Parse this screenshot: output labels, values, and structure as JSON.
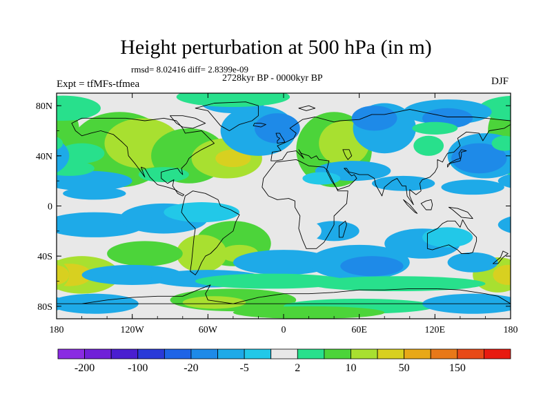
{
  "chart_data": {
    "type": "filled-contour-map",
    "title": "Height perturbation at 500 hPa (in m)",
    "stats": {
      "rmsd_label": "rmsd= 8.02416",
      "diff_label": "diff= 2.8399e-09",
      "line": "rmsd= 8.02416 diff= 2.8399e-09"
    },
    "period": "2728kyr BP - 0000kyr BP",
    "experiment": "Expt = tfMFs-tfmea",
    "season": "DJF",
    "variable": "geopotential height perturbation",
    "pressure_level_hpa": 500,
    "units": "m",
    "x_axis": {
      "range": [
        -180,
        180
      ],
      "tick_values": [
        -180,
        -120,
        -60,
        0,
        60,
        120,
        180
      ],
      "tick_labels": [
        "180",
        "120W",
        "60W",
        "0",
        "60E",
        "120E",
        "180"
      ]
    },
    "y_axis": {
      "range": [
        -90,
        90
      ],
      "tick_values": [
        80,
        40,
        0,
        -40,
        -80
      ],
      "tick_labels": [
        "80N",
        "40N",
        "0",
        "40S",
        "80S"
      ]
    },
    "colorbar": {
      "colors": [
        "#8a2be2",
        "#7020d8",
        "#4a1ed0",
        "#2a3ad8",
        "#1e64e6",
        "#1e8ae8",
        "#1eaae8",
        "#22c8e8",
        "#e8e8e8",
        "#28e08c",
        "#4cd43a",
        "#a8e030",
        "#d8d020",
        "#e8a818",
        "#e87818",
        "#e84a18",
        "#e81a10"
      ],
      "shown_labels": [
        "-200",
        "-100",
        "-20",
        "-5",
        "2",
        "10",
        "50",
        "150"
      ]
    },
    "regions": [
      {
        "name": "north-america-positive",
        "lon": -110,
        "lat": 48,
        "class": 11,
        "value": 10
      },
      {
        "name": "north-atlantic-positive",
        "lon": -45,
        "lat": 40,
        "class": 12,
        "value": 30
      },
      {
        "name": "north-atlantic-negative",
        "lon": -10,
        "lat": 55,
        "class": 6,
        "value": -10
      },
      {
        "name": "eurasia-positive",
        "lon": 42,
        "lat": 48,
        "class": 11,
        "value": 10
      },
      {
        "name": "siberia-negative",
        "lon": 60,
        "lat": 70,
        "class": 5,
        "value": -15
      },
      {
        "name": "north-pacific-negative",
        "lon": 155,
        "lat": 38,
        "class": 5,
        "value": -20
      },
      {
        "name": "southern-indian-negative",
        "lon": 70,
        "lat": -45,
        "class": 5,
        "value": -20
      },
      {
        "name": "south-pacific-positive",
        "lon": -160,
        "lat": -55,
        "class": 12,
        "value": 40
      },
      {
        "name": "south-pacific-east-positive",
        "lon": 175,
        "lat": -55,
        "class": 12,
        "value": 30
      },
      {
        "name": "south-atlantic-positive",
        "lon": -30,
        "lat": -35,
        "class": 11,
        "value": 10
      },
      {
        "name": "antarctic-positive",
        "lon": -60,
        "lat": -78,
        "class": 10,
        "value": 5
      },
      {
        "name": "south-america-positive",
        "lon": -75,
        "lat": -35,
        "class": 11,
        "value": 15
      }
    ]
  }
}
